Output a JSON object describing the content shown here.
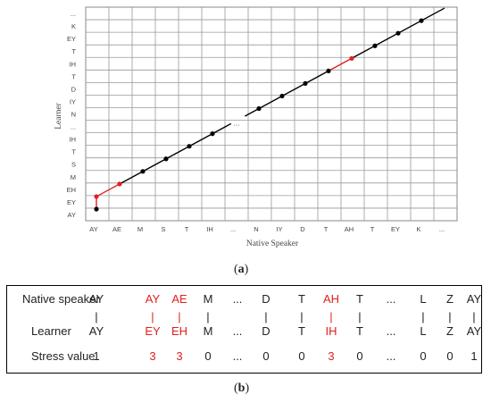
{
  "figure_a": {
    "caption_pre": "(",
    "caption_letter": "a",
    "caption_post": ")",
    "xlabel": "Native Speaker",
    "ylabel": "Learner",
    "x_ticks": [
      "AY",
      "AE",
      "M",
      "S",
      "T",
      "IH",
      "...",
      "N",
      "IY",
      "D",
      "T",
      "AH",
      "T",
      "EY",
      "K",
      "..."
    ],
    "y_ticks_bottom_to_top": [
      "AY",
      "EY",
      "EH",
      "M",
      "S",
      "T",
      "IH",
      "...",
      "N",
      "IY",
      "D",
      "T",
      "IH",
      "T",
      "EY",
      "K",
      "..."
    ],
    "gap_label": "...",
    "path_colors": {
      "normal": "#000000",
      "highlight": "#e02020"
    },
    "points": [
      {
        "x": 0,
        "y": 0,
        "color": "black"
      },
      {
        "x": 0,
        "y": 1,
        "color": "red"
      },
      {
        "x": 1,
        "y": 2,
        "color": "red"
      },
      {
        "x": 2,
        "y": 3,
        "color": "black"
      },
      {
        "x": 3,
        "y": 4,
        "color": "black"
      },
      {
        "x": 4,
        "y": 5,
        "color": "black"
      },
      {
        "x": 5,
        "y": 6,
        "color": "black"
      },
      {
        "x": 7,
        "y": 8,
        "color": "black"
      },
      {
        "x": 8,
        "y": 9,
        "color": "black"
      },
      {
        "x": 9,
        "y": 10,
        "color": "black"
      },
      {
        "x": 10,
        "y": 11,
        "color": "black"
      },
      {
        "x": 11,
        "y": 12,
        "color": "red"
      },
      {
        "x": 12,
        "y": 13,
        "color": "black"
      },
      {
        "x": 13,
        "y": 14,
        "color": "black"
      },
      {
        "x": 14,
        "y": 15,
        "color": "black"
      }
    ],
    "segments": [
      {
        "from": [
          0,
          0
        ],
        "to": [
          0,
          1
        ],
        "color": "red"
      },
      {
        "from": [
          0,
          1
        ],
        "to": [
          1,
          2
        ],
        "color": "red"
      },
      {
        "from": [
          1,
          2
        ],
        "to": [
          5.8,
          6.8
        ],
        "color": "black"
      },
      {
        "from": [
          6.4,
          7.4
        ],
        "to": [
          10,
          11
        ],
        "color": "black"
      },
      {
        "from": [
          10,
          11
        ],
        "to": [
          11,
          12
        ],
        "color": "red"
      },
      {
        "from": [
          11,
          12
        ],
        "to": [
          15,
          16
        ],
        "color": "black"
      }
    ]
  },
  "figure_b": {
    "caption_pre": "(",
    "caption_letter": "b",
    "caption_post": ")",
    "rows": [
      {
        "label": "Native speaker",
        "cells": [
          {
            "text": "AY",
            "red": false
          },
          {
            "text": "AY",
            "red": true
          },
          {
            "text": "AE",
            "red": true
          },
          {
            "text": "M",
            "red": false
          },
          {
            "text": "...",
            "red": false
          },
          {
            "text": "D",
            "red": false
          },
          {
            "text": "T",
            "red": false
          },
          {
            "text": "AH",
            "red": true
          },
          {
            "text": "T",
            "red": false
          },
          {
            "text": "...",
            "red": false
          },
          {
            "text": "L",
            "red": false
          },
          {
            "text": "Z",
            "red": false
          },
          {
            "text": "AY",
            "red": false
          }
        ]
      },
      {
        "label": "",
        "cells": [
          {
            "text": "|",
            "red": false
          },
          {
            "text": "|",
            "red": true
          },
          {
            "text": "|",
            "red": true
          },
          {
            "text": "|",
            "red": false
          },
          {
            "text": "",
            "red": false
          },
          {
            "text": "|",
            "red": false
          },
          {
            "text": "|",
            "red": false
          },
          {
            "text": "|",
            "red": true
          },
          {
            "text": "|",
            "red": false
          },
          {
            "text": "",
            "red": false
          },
          {
            "text": "|",
            "red": false
          },
          {
            "text": "|",
            "red": false
          },
          {
            "text": "|",
            "red": false
          }
        ]
      },
      {
        "label": "Learner",
        "cells": [
          {
            "text": "AY",
            "red": false
          },
          {
            "text": "EY",
            "red": true
          },
          {
            "text": "EH",
            "red": true
          },
          {
            "text": "M",
            "red": false
          },
          {
            "text": "...",
            "red": false
          },
          {
            "text": "D",
            "red": false
          },
          {
            "text": "T",
            "red": false
          },
          {
            "text": "IH",
            "red": true
          },
          {
            "text": "T",
            "red": false
          },
          {
            "text": "...",
            "red": false
          },
          {
            "text": "L",
            "red": false
          },
          {
            "text": "Z",
            "red": false
          },
          {
            "text": "AY",
            "red": false
          }
        ]
      },
      {
        "label": "Stress value",
        "cells": [
          {
            "text": "1",
            "red": false
          },
          {
            "text": "3",
            "red": true
          },
          {
            "text": "3",
            "red": true
          },
          {
            "text": "0",
            "red": false
          },
          {
            "text": "...",
            "red": false
          },
          {
            "text": "0",
            "red": false
          },
          {
            "text": "0",
            "red": false
          },
          {
            "text": "3",
            "red": true
          },
          {
            "text": "0",
            "red": false
          },
          {
            "text": "...",
            "red": false
          },
          {
            "text": "0",
            "red": false
          },
          {
            "text": "0",
            "red": false
          },
          {
            "text": "1",
            "red": false
          }
        ]
      }
    ]
  }
}
